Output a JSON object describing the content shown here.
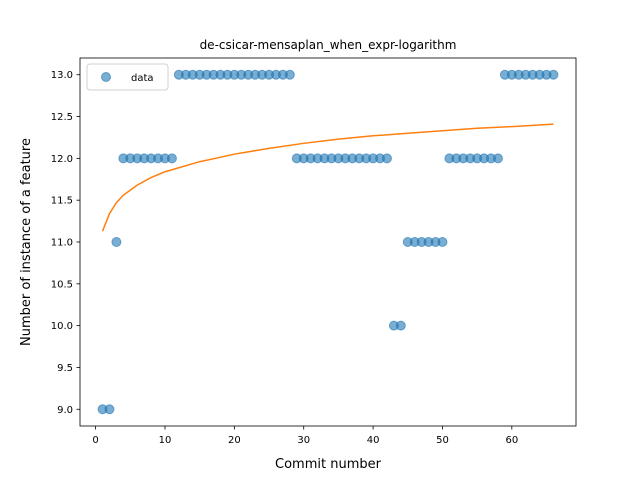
{
  "chart_data": {
    "type": "scatter",
    "title": "de-csicar-mensaplan_when_expr-logarithm",
    "xlabel": "Commit number",
    "ylabel": "Number of instance of a feature",
    "xlim": [
      -2.25,
      69.25
    ],
    "ylim": [
      8.8,
      13.2
    ],
    "xticks": [
      0,
      10,
      20,
      30,
      40,
      50,
      60
    ],
    "yticks": [
      9.0,
      9.5,
      10.0,
      10.5,
      11.0,
      11.5,
      12.0,
      12.5,
      13.0
    ],
    "xtick_labels": [
      "0",
      "10",
      "20",
      "30",
      "40",
      "50",
      "60"
    ],
    "ytick_labels": [
      "9.0",
      "9.5",
      "10.0",
      "10.5",
      "11.0",
      "11.5",
      "12.0",
      "12.5",
      "13.0"
    ],
    "grid": false,
    "legend_position": "top-left",
    "series": [
      {
        "name": "data",
        "kind": "scatter",
        "color": "#1f77b4",
        "x": [
          1,
          2,
          3,
          4,
          5,
          6,
          7,
          8,
          9,
          10,
          11,
          12,
          13,
          14,
          15,
          16,
          17,
          18,
          19,
          20,
          21,
          22,
          23,
          24,
          25,
          26,
          27,
          28,
          29,
          30,
          31,
          32,
          33,
          34,
          35,
          36,
          37,
          38,
          39,
          40,
          41,
          42,
          43,
          44,
          45,
          46,
          47,
          48,
          49,
          50,
          51,
          52,
          53,
          54,
          55,
          56,
          57,
          58,
          59,
          60,
          61,
          62,
          63,
          64,
          65,
          66
        ],
        "y": [
          9,
          9,
          11,
          12,
          12,
          12,
          12,
          12,
          12,
          12,
          12,
          13,
          13,
          13,
          13,
          13,
          13,
          13,
          13,
          13,
          13,
          13,
          13,
          13,
          13,
          13,
          13,
          13,
          12,
          12,
          12,
          12,
          12,
          12,
          12,
          12,
          12,
          12,
          12,
          12,
          12,
          12,
          10,
          10,
          11,
          11,
          11,
          11,
          11,
          11,
          12,
          12,
          12,
          12,
          12,
          12,
          12,
          12,
          13,
          13,
          13,
          13,
          13,
          13,
          13,
          13
        ]
      },
      {
        "kind": "line",
        "color": "#ff7f0e",
        "fit": "logarithmic",
        "x": [
          1,
          2,
          3,
          4,
          6,
          8,
          10,
          15,
          20,
          25,
          30,
          35,
          40,
          45,
          50,
          55,
          60,
          66
        ],
        "y": [
          11.13,
          11.34,
          11.47,
          11.56,
          11.68,
          11.77,
          11.84,
          11.96,
          12.05,
          12.12,
          12.18,
          12.23,
          12.27,
          12.3,
          12.33,
          12.36,
          12.38,
          12.41
        ]
      }
    ]
  }
}
